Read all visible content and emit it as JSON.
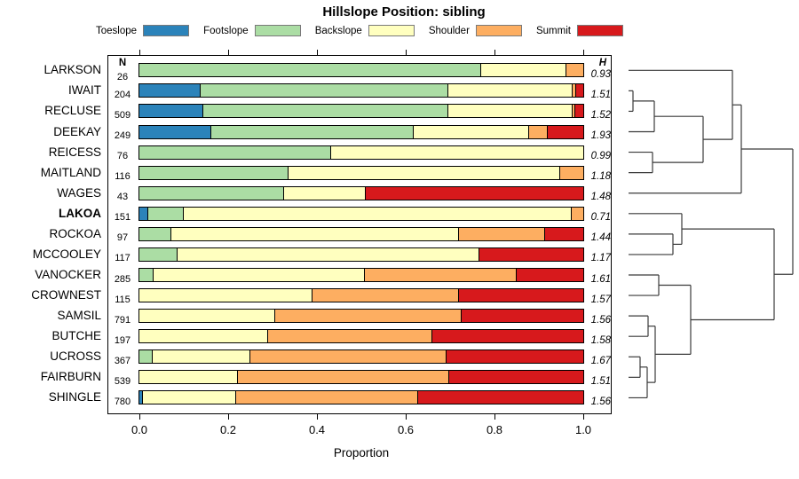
{
  "title": "Hillslope Position: sibling",
  "xlabel": "Proportion",
  "n_header": "N",
  "h_header": "H",
  "legend": [
    {
      "label": "Toeslope",
      "color": "#2b83ba"
    },
    {
      "label": "Footslope",
      "color": "#abdda4"
    },
    {
      "label": "Backslope",
      "color": "#ffffbf"
    },
    {
      "label": "Shoulder",
      "color": "#fdae61"
    },
    {
      "label": "Summit",
      "color": "#d7191c"
    }
  ],
  "chart_data": {
    "type": "bar",
    "subtype": "horizontal-stacked-proportion",
    "stack_order": [
      "Toeslope",
      "Footslope",
      "Backslope",
      "Shoulder",
      "Summit"
    ],
    "xlim": [
      0,
      1
    ],
    "x_ticks": [
      "0.0",
      "0.2",
      "0.4",
      "0.6",
      "0.8",
      "1.0"
    ],
    "x_tick_values": [
      0,
      0.2,
      0.4,
      0.6,
      0.8,
      1.0
    ],
    "xlabel": "Proportion",
    "rows": [
      {
        "name": "LARKSON",
        "n": 26,
        "h": "0.93",
        "emphasis": false,
        "values": [
          0,
          0.77,
          0.191,
          0.039,
          0
        ]
      },
      {
        "name": "IWAIT",
        "n": 204,
        "h": "1.51",
        "emphasis": false,
        "values": [
          0.137,
          0.558,
          0.28,
          0.009,
          0.016
        ]
      },
      {
        "name": "RECLUSE",
        "n": 509,
        "h": "1.52",
        "emphasis": false,
        "values": [
          0.144,
          0.551,
          0.281,
          0.006,
          0.018
        ]
      },
      {
        "name": "DEEKAY",
        "n": 249,
        "h": "1.93",
        "emphasis": false,
        "values": [
          0.161,
          0.456,
          0.26,
          0.042,
          0.081
        ]
      },
      {
        "name": "REICESS",
        "n": 76,
        "h": "0.99",
        "emphasis": false,
        "values": [
          0,
          0.432,
          0.568,
          0,
          0
        ]
      },
      {
        "name": "MAITLAND",
        "n": 116,
        "h": "1.18",
        "emphasis": false,
        "values": [
          0,
          0.335,
          0.612,
          0.053,
          0
        ]
      },
      {
        "name": "WAGES",
        "n": 43,
        "h": "1.48",
        "emphasis": false,
        "values": [
          0,
          0.325,
          0.185,
          0,
          0.49
        ]
      },
      {
        "name": "LAKOA",
        "n": 151,
        "h": "0.71",
        "emphasis": true,
        "values": [
          0.02,
          0.079,
          0.874,
          0.027,
          0
        ]
      },
      {
        "name": "ROCKOA",
        "n": 97,
        "h": "1.44",
        "emphasis": false,
        "values": [
          0,
          0.072,
          0.648,
          0.193,
          0.087
        ]
      },
      {
        "name": "MCCOOLEY",
        "n": 117,
        "h": "1.17",
        "emphasis": false,
        "values": [
          0,
          0.085,
          0.68,
          0,
          0.235
        ]
      },
      {
        "name": "VANOCKER",
        "n": 285,
        "h": "1.61",
        "emphasis": false,
        "values": [
          0,
          0.032,
          0.476,
          0.341,
          0.151
        ]
      },
      {
        "name": "CROWNEST",
        "n": 115,
        "h": "1.57",
        "emphasis": false,
        "values": [
          0,
          0,
          0.39,
          0.33,
          0.28
        ]
      },
      {
        "name": "SAMSIL",
        "n": 791,
        "h": "1.56",
        "emphasis": false,
        "values": [
          0,
          0,
          0.305,
          0.42,
          0.275
        ]
      },
      {
        "name": "BUTCHE",
        "n": 197,
        "h": "1.58",
        "emphasis": false,
        "values": [
          0,
          0,
          0.29,
          0.37,
          0.34
        ]
      },
      {
        "name": "UCROSS",
        "n": 367,
        "h": "1.67",
        "emphasis": false,
        "values": [
          0,
          0.03,
          0.219,
          0.442,
          0.309
        ]
      },
      {
        "name": "FAIRBURN",
        "n": 539,
        "h": "1.51",
        "emphasis": false,
        "values": [
          0,
          0,
          0.221,
          0.476,
          0.303
        ]
      },
      {
        "name": "SHINGLE",
        "n": 780,
        "h": "1.56",
        "emphasis": false,
        "values": [
          0.008,
          0,
          0.21,
          0.41,
          0.372
        ]
      }
    ],
    "dendrogram": {
      "orientation": "right-of-plot",
      "tree": {
        "x": 893,
        "children": [
          {
            "x": 835,
            "children": [
              {
                "x": 825,
                "children": [
                  {
                    "leaf": "LARKSON"
                  },
                  {
                    "x": 792,
                    "children": [
                      {
                        "x": 737,
                        "children": [
                          {
                            "x": 713,
                            "children": [
                              {
                                "leaf": "IWAIT"
                              },
                              {
                                "leaf": "RECLUSE"
                              }
                            ]
                          },
                          {
                            "leaf": "DEEKAY"
                          }
                        ]
                      },
                      {
                        "x": 735,
                        "children": [
                          {
                            "leaf": "REICESS"
                          },
                          {
                            "leaf": "MAITLAND"
                          }
                        ]
                      }
                    ]
                  }
                ]
              },
              {
                "leaf": "WAGES"
              }
            ]
          },
          {
            "x": 872,
            "children": [
              {
                "x": 768,
                "children": [
                  {
                    "leaf": "LAKOA"
                  },
                  {
                    "x": 758,
                    "children": [
                      {
                        "leaf": "ROCKOA"
                      },
                      {
                        "leaf": "MCCOOLEY"
                      }
                    ]
                  }
                ]
              },
              {
                "x": 778,
                "children": [
                  {
                    "x": 742,
                    "children": [
                      {
                        "leaf": "VANOCKER"
                      },
                      {
                        "leaf": "CROWNEST"
                      }
                    ]
                  },
                  {
                    "x": 738,
                    "children": [
                      {
                        "x": 730,
                        "children": [
                          {
                            "leaf": "SAMSIL"
                          },
                          {
                            "leaf": "BUTCHE"
                          }
                        ]
                      },
                      {
                        "x": 729,
                        "children": [
                          {
                            "x": 721,
                            "children": [
                              {
                                "leaf": "UCROSS"
                              },
                              {
                                "leaf": "FAIRBURN"
                              }
                            ]
                          },
                          {
                            "leaf": "SHINGLE"
                          }
                        ]
                      }
                    ]
                  }
                ]
              }
            ]
          }
        ]
      }
    }
  }
}
